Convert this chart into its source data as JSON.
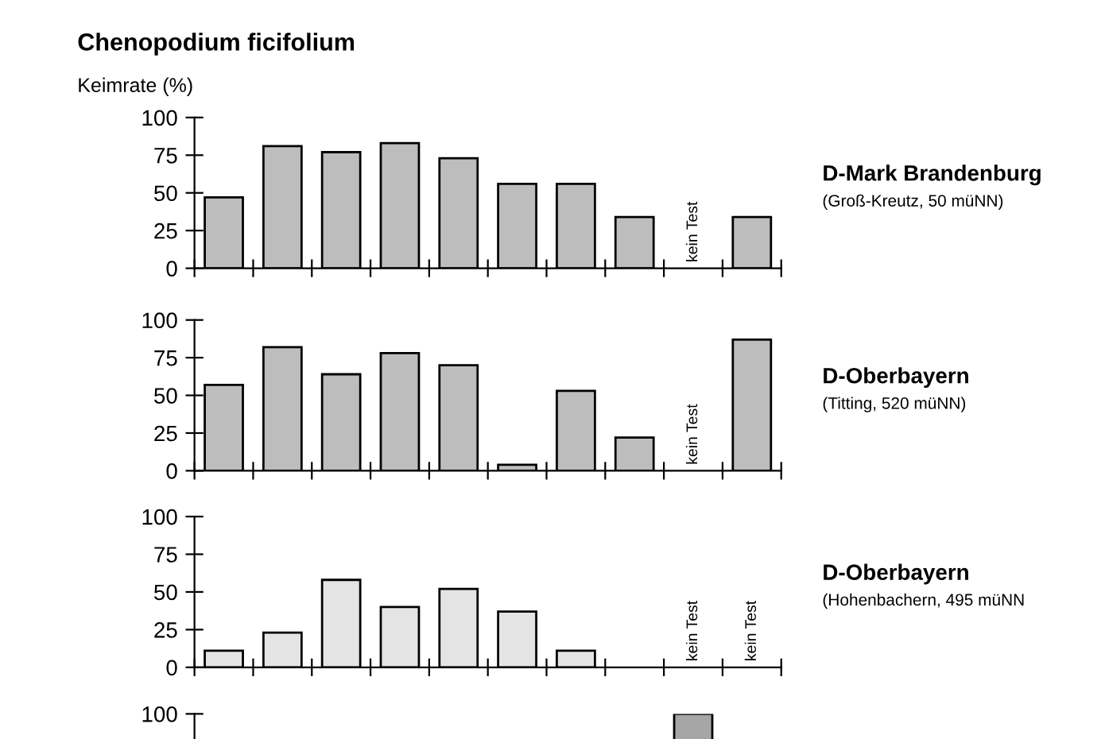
{
  "chart_data": [
    {
      "type": "bar",
      "title": "Chenopodium ficifolium",
      "ylabel": "Keimrate (%)",
      "categories": [
        null,
        null,
        null,
        null,
        null,
        null,
        null,
        null,
        null,
        null
      ],
      "values": [
        47,
        81,
        77,
        83,
        73,
        56,
        56,
        34,
        null,
        34
      ],
      "value_labels": [
        null,
        null,
        null,
        null,
        null,
        null,
        null,
        null,
        "kein Test",
        null
      ],
      "color": "#bdbdbd",
      "ylim": [
        0,
        100
      ],
      "yticks": [
        0,
        25,
        50,
        75,
        100
      ],
      "grid": false,
      "annotations": [
        "D-Mark Brandenburg",
        "(Groß-Kreutz, 50 müNN)"
      ]
    },
    {
      "type": "bar",
      "categories": [
        null,
        null,
        null,
        null,
        null,
        null,
        null,
        null,
        null,
        null
      ],
      "values": [
        57,
        82,
        64,
        78,
        70,
        4,
        53,
        22,
        null,
        87
      ],
      "value_labels": [
        null,
        null,
        null,
        null,
        null,
        null,
        null,
        null,
        "kein Test",
        null
      ],
      "color": "#bdbdbd",
      "ylim": [
        0,
        100
      ],
      "yticks": [
        0,
        25,
        50,
        75,
        100
      ],
      "grid": false,
      "annotations": [
        "D-Oberbayern",
        "(Titting, 520 müNN)"
      ]
    },
    {
      "type": "bar",
      "categories": [
        null,
        null,
        null,
        null,
        null,
        null,
        null,
        null,
        null,
        null
      ],
      "values": [
        11,
        23,
        58,
        40,
        52,
        37,
        11,
        null,
        null,
        null
      ],
      "value_labels": [
        null,
        null,
        null,
        null,
        null,
        null,
        null,
        null,
        "kein Test",
        "kein Test"
      ],
      "color": "#e4e4e4",
      "ylim": [
        0,
        100
      ],
      "yticks": [
        0,
        25,
        50,
        75,
        100
      ],
      "grid": false,
      "annotations": [
        "D-Oberbayern",
        "(Hohenbachern, 495 müNN"
      ]
    },
    {
      "type": "bar",
      "categories": [
        null,
        null,
        null,
        null,
        null,
        null,
        null,
        null,
        null,
        null
      ],
      "values": [
        null,
        null,
        null,
        null,
        null,
        null,
        null,
        null,
        100,
        null
      ],
      "color": "#a6a6a6",
      "ylim": [
        0,
        100
      ],
      "yticks": [
        0,
        25,
        50,
        75,
        100
      ],
      "grid": false
    }
  ]
}
